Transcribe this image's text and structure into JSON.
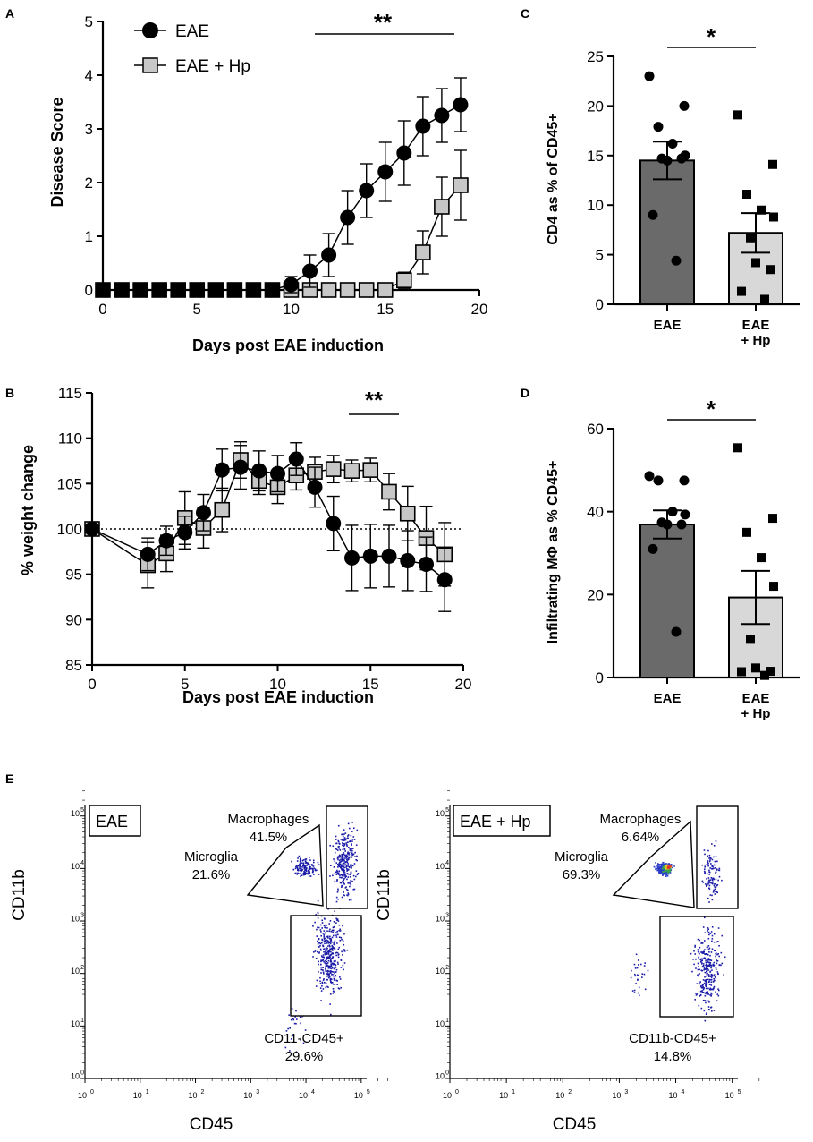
{
  "chart_data": [
    {
      "panel": "A",
      "type": "line",
      "xlabel": "Days post EAE induction",
      "ylabel": "Disease Score",
      "xlim": [
        0,
        20
      ],
      "ylim": [
        0,
        5
      ],
      "xticks": [
        "0",
        "5",
        "10",
        "15",
        "20"
      ],
      "yticks": [
        "0",
        "1",
        "2",
        "3",
        "4",
        "5"
      ],
      "significance": "**",
      "legend": [
        "EAE",
        "EAE + Hp"
      ],
      "series": [
        {
          "name": "EAE",
          "marker": "circle",
          "x": [
            0,
            1,
            2,
            3,
            4,
            5,
            6,
            7,
            8,
            9,
            10,
            11,
            12,
            13,
            14,
            15,
            16,
            17,
            18,
            19
          ],
          "y": [
            0,
            0,
            0,
            0,
            0,
            0,
            0,
            0,
            0,
            0,
            0.1,
            0.35,
            0.65,
            1.35,
            1.85,
            2.2,
            2.55,
            3.05,
            3.25,
            3.45
          ],
          "err": [
            0,
            0,
            0,
            0,
            0,
            0,
            0,
            0,
            0,
            0,
            0.15,
            0.3,
            0.4,
            0.5,
            0.5,
            0.55,
            0.6,
            0.55,
            0.5,
            0.5
          ]
        },
        {
          "name": "EAE + Hp",
          "marker": "square",
          "x": [
            0,
            1,
            2,
            3,
            4,
            5,
            6,
            7,
            8,
            9,
            10,
            11,
            12,
            13,
            14,
            15,
            16,
            17,
            18,
            19
          ],
          "y": [
            0,
            0,
            0,
            0,
            0,
            0,
            0,
            0,
            0,
            0,
            0,
            0,
            0,
            0,
            0,
            0,
            0.18,
            0.7,
            1.55,
            1.95
          ],
          "err": [
            0,
            0,
            0,
            0,
            0,
            0,
            0,
            0,
            0,
            0,
            0,
            0,
            0,
            0,
            0,
            0,
            0.15,
            0.4,
            0.55,
            0.65
          ]
        }
      ]
    },
    {
      "panel": "B",
      "type": "line",
      "xlabel": "Days post EAE induction",
      "ylabel": "% weight change",
      "xlim": [
        0,
        20
      ],
      "ylim": [
        85,
        115
      ],
      "xticks": [
        "0",
        "5",
        "10",
        "15",
        "20"
      ],
      "yticks": [
        "85",
        "90",
        "95",
        "100",
        "105",
        "110",
        "115"
      ],
      "reference_line": 100,
      "significance": "**",
      "series": [
        {
          "name": "EAE",
          "marker": "circle",
          "x": [
            0,
            3,
            4,
            5,
            6,
            7,
            8,
            9,
            10,
            11,
            12,
            13,
            14,
            15,
            16,
            17,
            18,
            19
          ],
          "y": [
            100,
            97.2,
            98.7,
            99.6,
            101.8,
            106.5,
            106.8,
            106.4,
            106.1,
            107.7,
            104.6,
            100.6,
            96.8,
            97.0,
            97.0,
            96.5,
            96.1,
            94.4
          ],
          "err": [
            0,
            1.8,
            1.6,
            1.8,
            2.0,
            2.3,
            2.4,
            2.2,
            2.0,
            1.8,
            2.2,
            3.0,
            3.6,
            3.5,
            3.4,
            3.3,
            3.0,
            3.5
          ]
        },
        {
          "name": "EAE + Hp",
          "marker": "square",
          "x": [
            0,
            3,
            4,
            5,
            6,
            7,
            8,
            9,
            10,
            11,
            12,
            13,
            14,
            15,
            16,
            17,
            18,
            19
          ],
          "y": [
            100,
            96.0,
            97.3,
            101.2,
            100.1,
            102.1,
            107.6,
            105.3,
            104.6,
            105.9,
            106.3,
            106.6,
            106.4,
            106.5,
            104.1,
            101.7,
            99.0,
            97.2
          ],
          "err": [
            0,
            2.5,
            2.0,
            2.9,
            2.2,
            2.4,
            2.0,
            1.5,
            1.8,
            1.6,
            1.6,
            1.5,
            1.2,
            1.3,
            2.0,
            3.0,
            3.5,
            3.5
          ]
        }
      ]
    },
    {
      "panel": "C",
      "type": "bar",
      "ylabel": "CD4 as % of CD45+",
      "ylim": [
        0,
        25
      ],
      "yticks": [
        "0",
        "5",
        "10",
        "15",
        "20",
        "25"
      ],
      "categories": [
        "EAE",
        "EAE + Hp"
      ],
      "category_lines": [
        [
          "EAE"
        ],
        [
          "EAE",
          "+ Hp"
        ]
      ],
      "values": [
        14.5,
        7.2
      ],
      "sem": [
        1.9,
        2.0
      ],
      "significance": "*",
      "points": [
        [
          23.0,
          20.0,
          17.9,
          16.2,
          15.0,
          14.7,
          14.5,
          14.7,
          9.0,
          4.4
        ],
        [
          19.1,
          14.1,
          11.1,
          9.5,
          8.8,
          6.7,
          4.2,
          3.5,
          1.3,
          0.5
        ]
      ]
    },
    {
      "panel": "D",
      "type": "bar",
      "ylabel": "Infiltrating MΦ as % CD45+",
      "ylim": [
        0,
        60
      ],
      "yticks": [
        "0",
        "20",
        "40",
        "60"
      ],
      "categories": [
        "EAE",
        "EAE + Hp"
      ],
      "category_lines": [
        [
          "EAE"
        ],
        [
          "EAE",
          "+ Hp"
        ]
      ],
      "values": [
        36.9,
        19.3
      ],
      "sem": [
        3.4,
        6.4
      ],
      "significance": "*",
      "points": [
        [
          48.6,
          47.5,
          47.5,
          40.0,
          39.3,
          37.4,
          36.9,
          36.9,
          31.0,
          11.0
        ],
        [
          55.4,
          38.4,
          35.0,
          28.9,
          22.0,
          9.2,
          2.3,
          1.5,
          1.4,
          0.5
        ]
      ]
    },
    {
      "panel": "E",
      "type": "scatter",
      "plot_kind": "flow cytometry",
      "xlabel": "CD45",
      "ylabel": "CD11b",
      "tick_exponents": [
        "0",
        "1",
        "2",
        "3",
        "4",
        "5"
      ],
      "tick_base": "10",
      "plots": [
        {
          "title": "EAE",
          "gates": [
            {
              "name": "Macrophages",
              "value": "41.5%"
            },
            {
              "name": "Microglia",
              "value": "21.6%"
            },
            {
              "name": "CD11-CD45+",
              "value": "29.6%"
            }
          ]
        },
        {
          "title": "EAE + Hp",
          "gates": [
            {
              "name": "Macrophages",
              "value": "6.64%"
            },
            {
              "name": "Microglia",
              "value": "69.3%"
            },
            {
              "name": "CD11b-CD45+",
              "value": "14.8%"
            }
          ]
        }
      ]
    }
  ],
  "panel_labels": [
    "A",
    "B",
    "C",
    "D",
    "E"
  ],
  "colors": {
    "eae_bar": "#6a6a6a",
    "hp_bar": "#d8d8d8",
    "hp_marker": "#c7c7c7",
    "dots": "#1a1aa8"
  }
}
